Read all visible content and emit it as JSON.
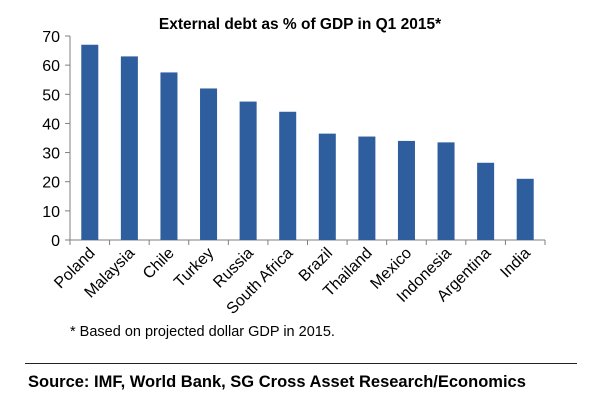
{
  "chart_data": {
    "type": "bar",
    "title": "External debt as % of GDP in Q1 2015*",
    "xlabel": "",
    "ylabel": "",
    "categories": [
      "Poland",
      "Malaysia",
      "Chile",
      "Turkey",
      "Russia",
      "South Africa",
      "Brazil",
      "Thailand",
      "Mexico",
      "Indonesia",
      "Argentina",
      "India"
    ],
    "values": [
      67,
      63,
      57.5,
      52,
      47.5,
      44,
      36.5,
      35.5,
      34,
      33.5,
      26.5,
      21
    ],
    "ylim": [
      0,
      70
    ],
    "yticks": [
      0,
      10,
      20,
      30,
      40,
      50,
      60,
      70
    ],
    "grid": false,
    "bar_color": "#2E5E9E"
  },
  "footnote": "* Based on projected dollar GDP in 2015.",
  "source": "Source: IMF, World Bank, SG Cross Asset Research/Economics"
}
